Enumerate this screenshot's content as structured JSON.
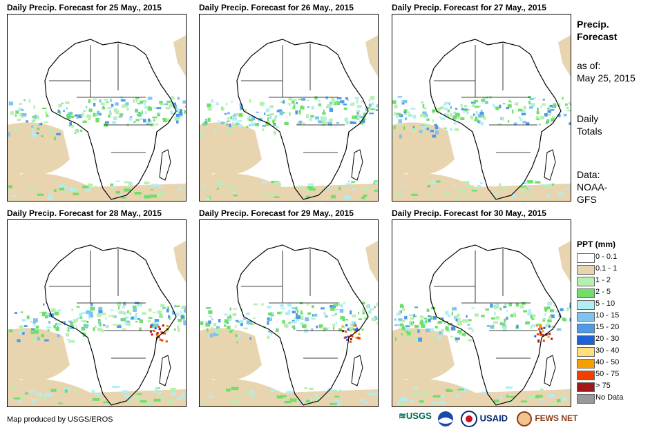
{
  "panels": [
    {
      "title": "Daily Precip. Forecast for 25 May., 2015"
    },
    {
      "title": "Daily Precip. Forecast for 26 May., 2015"
    },
    {
      "title": "Daily Precip. Forecast for 27 May., 2015"
    },
    {
      "title": "Daily Precip. Forecast for 28 May., 2015"
    },
    {
      "title": "Daily Precip. Forecast for 29 May., 2015"
    },
    {
      "title": "Daily Precip. Forecast for 30 May., 2015"
    }
  ],
  "sidebar": {
    "title_line1": "Precip.",
    "title_line2": "Forecast",
    "asof_line1": "as of:",
    "asof_line2": "May 25, 2015",
    "totals_line1": "Daily",
    "totals_line2": "Totals",
    "data_line1": "Data:",
    "data_line2": "NOAA-",
    "data_line3": "GFS"
  },
  "legend": {
    "title": "PPT (mm)",
    "items": [
      {
        "label": "0 - 0.1",
        "color": "#ffffff"
      },
      {
        "label": "0.1 - 1",
        "color": "#e8d5b0"
      },
      {
        "label": "1 - 2",
        "color": "#b6f0b0"
      },
      {
        "label": "2 - 5",
        "color": "#6ee06a"
      },
      {
        "label": "5 - 10",
        "color": "#b0eef5"
      },
      {
        "label": "10 - 15",
        "color": "#7ec4f0"
      },
      {
        "label": "15 - 20",
        "color": "#4f9ae8"
      },
      {
        "label": "20 - 30",
        "color": "#1f5fd8"
      },
      {
        "label": "30 - 40",
        "color": "#ffe07a"
      },
      {
        "label": "40 - 50",
        "color": "#f5a000"
      },
      {
        "label": "50 - 75",
        "color": "#f04000"
      },
      {
        "label": "> 75",
        "color": "#a01818"
      },
      {
        "label": "No Data",
        "color": "#999999"
      }
    ]
  },
  "footer": {
    "credit": "Map produced by USGS/EROS",
    "logo_usgs": "USGS",
    "logo_usaid": "USAID",
    "logo_fews": "FEWS NET"
  }
}
